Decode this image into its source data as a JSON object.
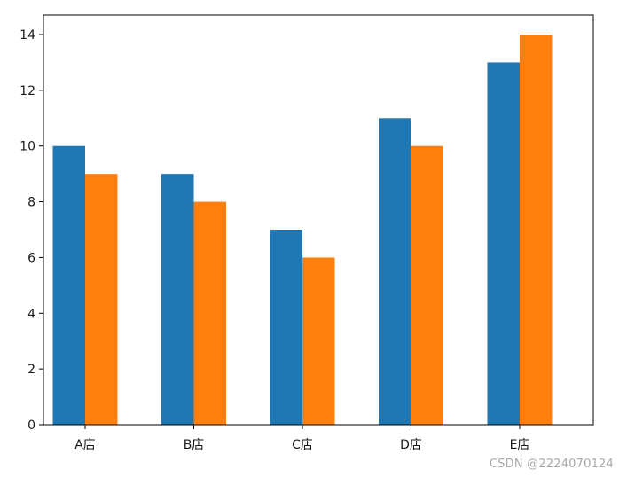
{
  "chart_data": {
    "type": "bar",
    "categories": [
      "A店",
      "B店",
      "C店",
      "D店",
      "E店"
    ],
    "series": [
      {
        "values": [
          10,
          9,
          7,
          11,
          13
        ]
      },
      {
        "values": [
          9,
          8,
          6,
          10,
          14
        ]
      }
    ],
    "series_colors": [
      "#1f77b4",
      "#ff7f0e"
    ],
    "ylim": [
      0,
      14.7
    ],
    "yticks": [
      0,
      2,
      4,
      6,
      8,
      10,
      12,
      14
    ],
    "grid": false,
    "legend": "none",
    "title": "",
    "xlabel": "",
    "ylabel": ""
  },
  "watermark": "CSDN @2224070124"
}
